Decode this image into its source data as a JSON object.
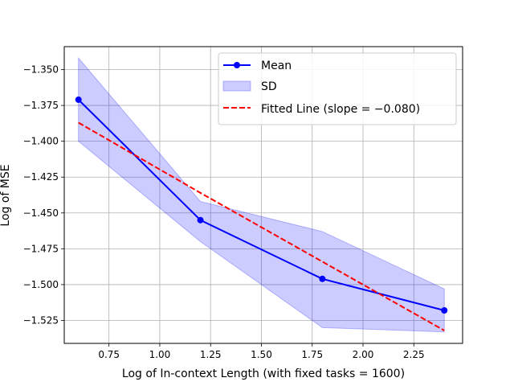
{
  "chart_data": {
    "type": "line",
    "title": "",
    "xlabel": "Log of In-context Length (with fixed tasks = 1600)",
    "ylabel": "Log of MSE",
    "xlim": [
      0.53,
      2.49
    ],
    "ylim": [
      -1.541,
      -1.334
    ],
    "xticks": [
      0.75,
      1.0,
      1.25,
      1.5,
      1.75,
      2.0,
      2.25
    ],
    "xtick_labels": [
      "0.75",
      "1.00",
      "1.25",
      "1.50",
      "1.75",
      "2.00",
      "2.25"
    ],
    "yticks": [
      -1.35,
      -1.375,
      -1.4,
      -1.425,
      -1.45,
      -1.475,
      -1.5,
      -1.525
    ],
    "ytick_labels": [
      "-1.350",
      "-1.375",
      "-1.400",
      "-1.425",
      "-1.450",
      "-1.475",
      "-1.500",
      "-1.525"
    ],
    "grid": true,
    "legend_position": "top-right",
    "x": [
      0.6,
      1.2,
      1.8,
      2.4
    ],
    "series": [
      {
        "name": "Mean",
        "kind": "line-marker",
        "color": "#0000ff",
        "values": [
          -1.371,
          -1.455,
          -1.496,
          -1.518
        ]
      },
      {
        "name": "SD",
        "kind": "band",
        "color": "#0000ff",
        "upper": [
          -1.342,
          -1.442,
          -1.463,
          -1.503
        ],
        "lower": [
          -1.4,
          -1.47,
          -1.53,
          -1.533
        ]
      },
      {
        "name": "Fitted Line (slope = −0.080)",
        "kind": "dashed-line",
        "color": "#ff0000",
        "values": [
          -1.387,
          -1.436,
          -1.484,
          -1.532
        ]
      }
    ]
  }
}
